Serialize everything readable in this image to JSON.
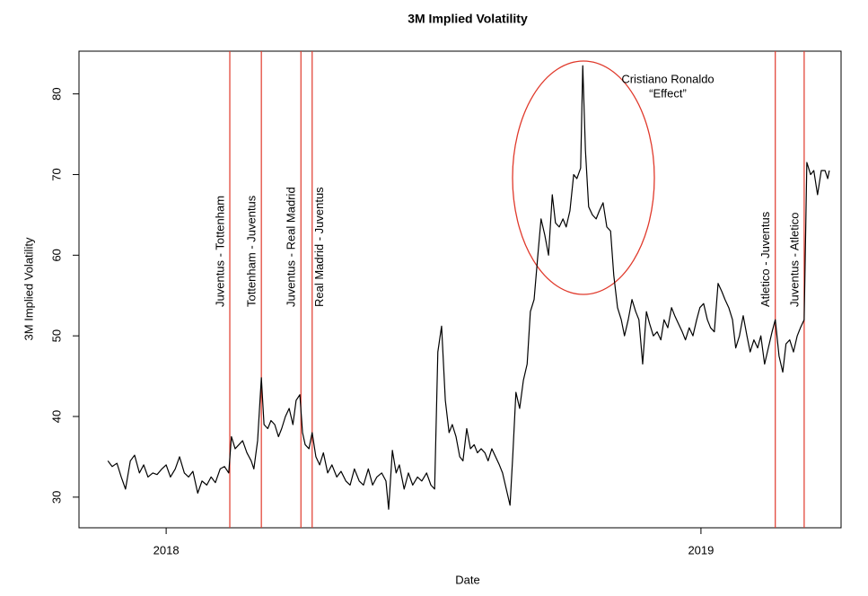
{
  "chart_data": {
    "type": "line",
    "title": "3M Implied Volatility",
    "x_label": "Date",
    "y_label": "3M Implied Volatility",
    "xlim": [
      2017.837,
      2019.262
    ],
    "xticks": [
      2018,
      2019
    ],
    "ylim": [
      26.2,
      85.3
    ],
    "yticks": [
      30,
      40,
      50,
      60,
      70,
      80
    ],
    "grid": false,
    "series": [
      {
        "name": "3M Implied Volatility",
        "color": "#000000",
        "x": [
          2017.891,
          2017.899,
          2017.908,
          2017.916,
          2017.924,
          2017.933,
          2017.941,
          2017.95,
          2017.958,
          2017.966,
          2017.975,
          2017.983,
          2017.992,
          2018.0,
          2018.008,
          2018.017,
          2018.025,
          2018.034,
          2018.042,
          2018.05,
          2018.059,
          2018.067,
          2018.076,
          2018.084,
          2018.092,
          2018.101,
          2018.109,
          2018.117,
          2018.122,
          2018.129,
          2018.136,
          2018.143,
          2018.151,
          2018.159,
          2018.164,
          2018.171,
          2018.178,
          2018.183,
          2018.19,
          2018.196,
          2018.203,
          2018.21,
          2018.216,
          2018.223,
          2018.23,
          2018.237,
          2018.243,
          2018.25,
          2018.255,
          2018.26,
          2018.267,
          2018.273,
          2018.28,
          2018.287,
          2018.294,
          2018.302,
          2018.31,
          2018.319,
          2018.327,
          2018.336,
          2018.344,
          2018.352,
          2018.361,
          2018.369,
          2018.378,
          2018.386,
          2018.394,
          2018.403,
          2018.411,
          2018.416,
          2018.423,
          2018.43,
          2018.436,
          2018.445,
          2018.453,
          2018.461,
          2018.47,
          2018.478,
          2018.487,
          2018.495,
          2018.502,
          2018.508,
          2018.515,
          2018.522,
          2018.529,
          2018.535,
          2018.542,
          2018.549,
          2018.555,
          2018.562,
          2018.569,
          2018.576,
          2018.582,
          2018.589,
          2018.596,
          2018.602,
          2018.609,
          2018.616,
          2018.623,
          2018.629,
          2018.636,
          2018.643,
          2018.648,
          2018.654,
          2018.661,
          2018.668,
          2018.675,
          2018.681,
          2018.688,
          2018.695,
          2018.701,
          2018.708,
          2018.715,
          2018.722,
          2018.728,
          2018.735,
          2018.742,
          2018.748,
          2018.755,
          2018.762,
          2018.768,
          2018.775,
          2018.779,
          2018.784,
          2018.79,
          2018.797,
          2018.804,
          2018.81,
          2018.817,
          2018.824,
          2018.831,
          2018.837,
          2018.844,
          2018.851,
          2018.857,
          2018.864,
          2018.871,
          2018.878,
          2018.884,
          2018.891,
          2018.898,
          2018.904,
          2018.911,
          2018.918,
          2018.925,
          2018.931,
          2018.938,
          2018.945,
          2018.951,
          2018.958,
          2018.965,
          2018.971,
          2018.978,
          2018.985,
          2018.992,
          2018.998,
          2019.005,
          2019.012,
          2019.018,
          2019.025,
          2019.032,
          2019.039,
          2019.045,
          2019.052,
          2019.059,
          2019.065,
          2019.072,
          2019.079,
          2019.086,
          2019.092,
          2019.099,
          2019.106,
          2019.112,
          2019.119,
          2019.126,
          2019.133,
          2019.139,
          2019.146,
          2019.153,
          2019.159,
          2019.166,
          2019.173,
          2019.18,
          2019.186,
          2019.193,
          2019.198,
          2019.205,
          2019.211,
          2019.218,
          2019.225,
          2019.232,
          2019.237,
          2019.24
        ],
        "values": [
          34.5,
          33.8,
          34.2,
          32.5,
          31,
          34.5,
          35.2,
          33,
          34,
          32.5,
          33,
          32.8,
          33.5,
          34,
          32.5,
          33.5,
          35,
          33,
          32.5,
          33.2,
          30.5,
          32,
          31.5,
          32.5,
          31.8,
          33.5,
          33.8,
          33,
          37.5,
          36,
          36.5,
          37,
          35.5,
          34.5,
          33.5,
          37,
          44.8,
          39,
          38.5,
          39.5,
          39,
          37.5,
          38.5,
          40,
          41,
          39,
          42,
          42.7,
          38,
          36.5,
          36,
          38,
          35,
          34,
          35.5,
          33,
          34,
          32.5,
          33.2,
          32,
          31.5,
          33.5,
          32,
          31.5,
          33.5,
          31.5,
          32.5,
          33,
          32,
          28.5,
          35.8,
          33,
          34,
          31,
          33,
          31.5,
          32.5,
          32,
          33,
          31.5,
          31,
          48,
          51.2,
          42,
          38,
          39,
          37.5,
          35,
          34.5,
          38.5,
          36,
          36.5,
          35.5,
          36,
          35.5,
          34.5,
          36,
          35,
          34,
          33,
          31,
          29,
          35,
          43,
          41,
          44.5,
          46.5,
          53,
          54.5,
          60,
          64.5,
          62.5,
          60,
          67.5,
          64,
          63.5,
          64.5,
          63.5,
          65.5,
          70,
          69.5,
          70.8,
          83.5,
          73,
          66,
          65,
          64.5,
          65.5,
          66.5,
          63.5,
          63,
          57.5,
          53.5,
          52,
          50,
          52,
          54.5,
          53,
          52,
          46.5,
          53,
          51.5,
          50,
          50.5,
          49.5,
          52,
          51,
          53.5,
          52.5,
          51.5,
          50.5,
          49.5,
          51,
          50,
          52,
          53.5,
          54,
          52,
          51,
          50.5,
          56.5,
          55.5,
          54.5,
          53.5,
          52,
          48.5,
          50,
          52.5,
          50,
          48,
          49.5,
          48.5,
          50,
          46.5,
          48.5,
          50.5,
          52,
          47.5,
          45.5,
          49,
          49.5,
          48,
          50,
          51,
          52,
          71.5,
          70,
          70.5,
          67.5,
          70.5,
          70.5,
          69.5,
          70.5
        ]
      }
    ],
    "events_color": "#e0392b",
    "events": [
      {
        "x": 2018.119,
        "label": "Juventus - Tottenham"
      },
      {
        "x": 2018.178,
        "label": "Tottenham - Juventus"
      },
      {
        "x": 2018.252,
        "label": "Juventus - Real Madrid"
      },
      {
        "x": 2018.273,
        "label": "Real Madrid - Juventus"
      },
      {
        "x": 2019.139,
        "label": "Atletico - Juventus"
      },
      {
        "x": 2019.193,
        "label": "Juventus - Atletico"
      }
    ],
    "annotation": {
      "lines": [
        "Cristiano Ronaldo",
        "“Effect”"
      ]
    }
  }
}
